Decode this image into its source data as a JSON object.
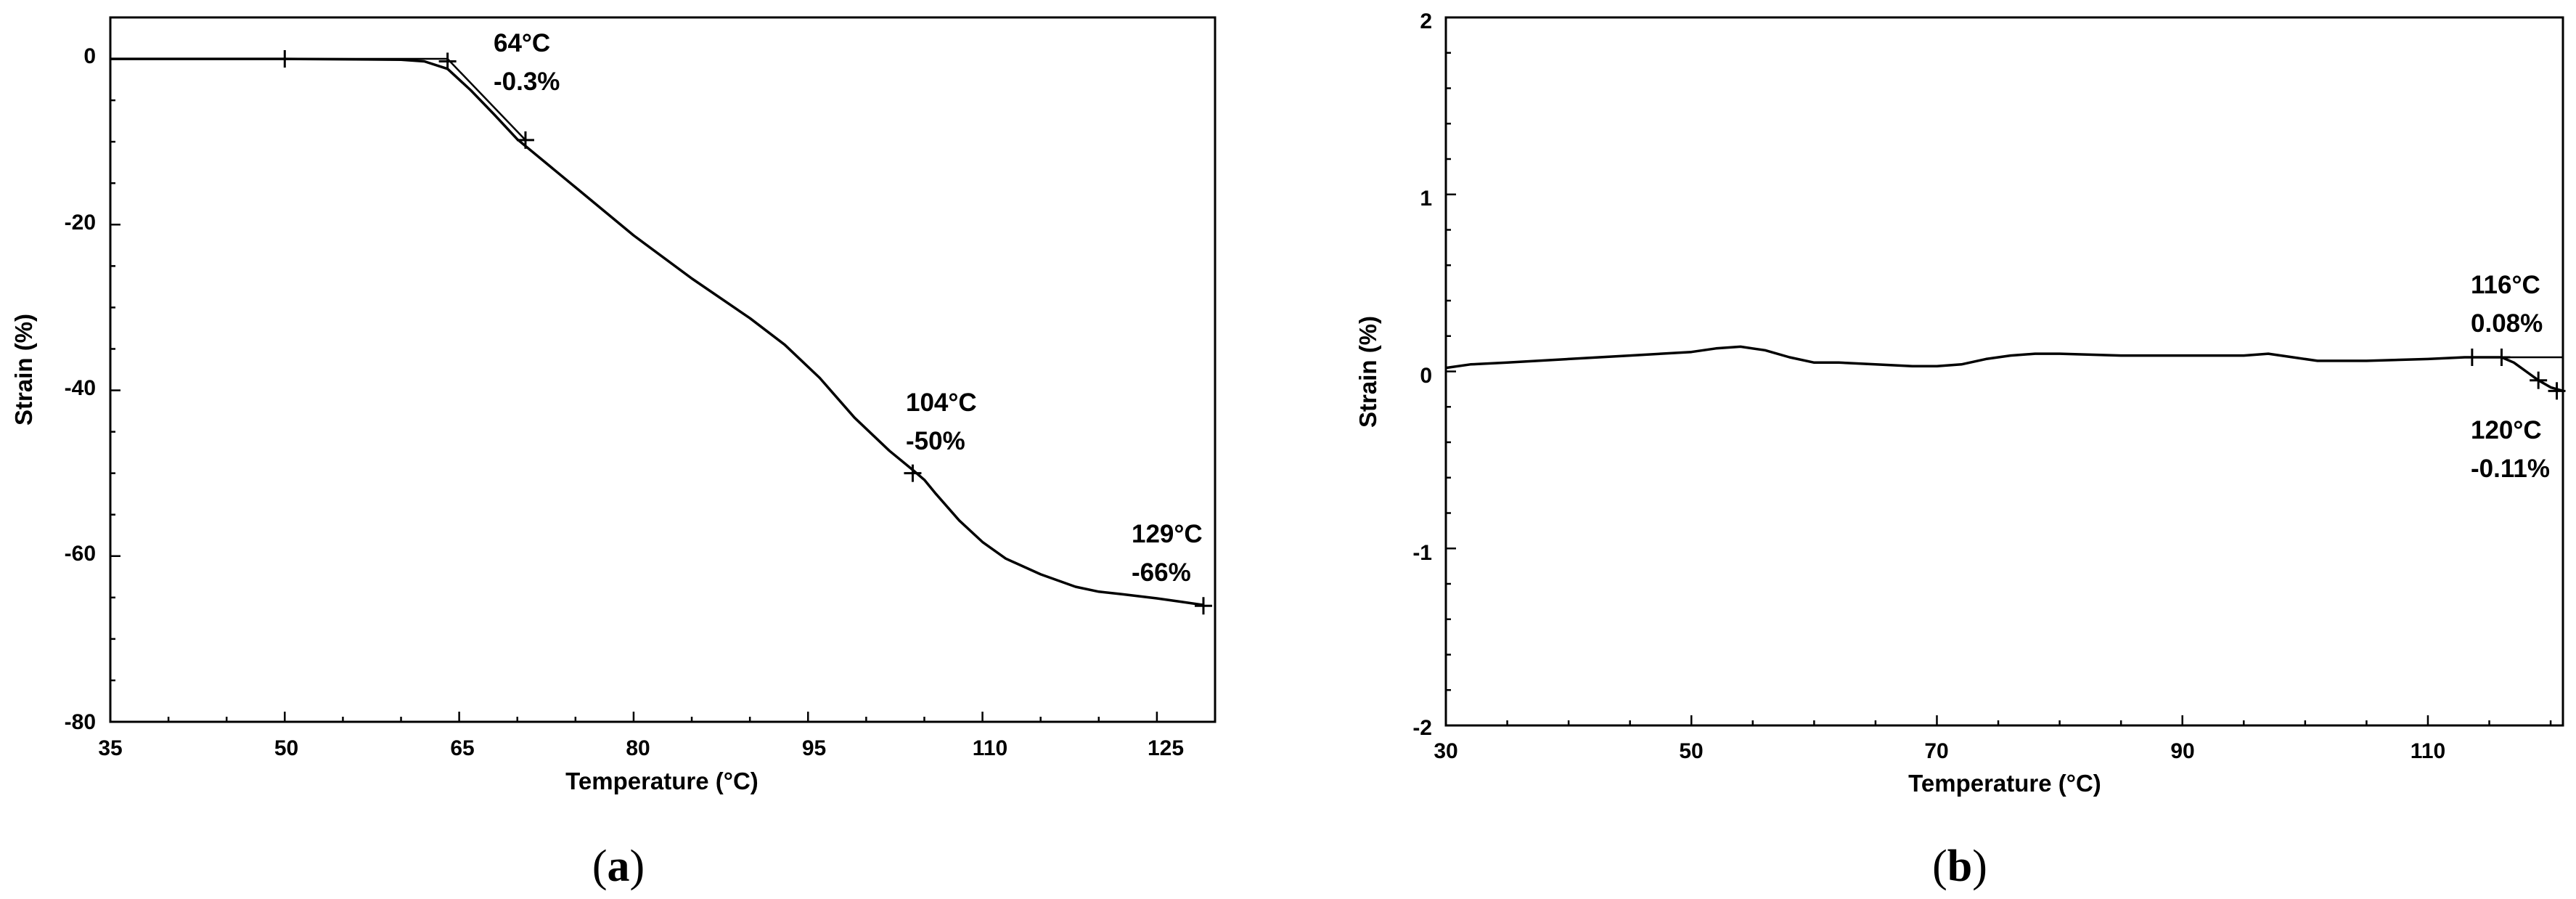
{
  "chart_data": [
    {
      "type": "line",
      "panel_label": "a",
      "xlabel": "Temperature (°C)",
      "ylabel": "Strain (%)",
      "xlim": [
        35,
        130
      ],
      "ylim": [
        -80,
        5
      ],
      "x_ticks": [
        "35",
        "50",
        "65",
        "80",
        "95",
        "110",
        "125"
      ],
      "y_ticks": [
        "0",
        "-20",
        "-40",
        "-60",
        "-80"
      ],
      "grid": false,
      "series": [
        {
          "x": [
            35,
            50,
            60,
            62,
            64,
            66,
            68,
            70,
            75,
            80,
            85,
            90,
            93,
            96,
            99,
            102,
            104,
            105,
            106,
            108,
            110,
            112,
            115,
            118,
            120,
            122,
            125,
            127,
            129
          ],
          "y": [
            0,
            0,
            -0.1,
            -0.3,
            -1.2,
            -3.8,
            -6.7,
            -9.7,
            -15.5,
            -21.3,
            -26.5,
            -31.3,
            -34.5,
            -38.5,
            -43.3,
            -47.3,
            -49.6,
            -50.8,
            -52.5,
            -55.7,
            -58.3,
            -60.3,
            -62.2,
            -63.7,
            -64.3,
            -64.6,
            -65.1,
            -65.5,
            -65.9
          ]
        }
      ],
      "tangent_lines": [
        {
          "x": [
            50,
            64
          ],
          "y": [
            0,
            0
          ]
        },
        {
          "x": [
            64,
            70.7
          ],
          "y": [
            0,
            -9.8
          ]
        }
      ],
      "markers": [
        {
          "x": 50,
          "y": 0
        },
        {
          "x": 64,
          "y": -0.3
        },
        {
          "x": 70.7,
          "y": -9.8
        },
        {
          "x": 104,
          "y": -50
        },
        {
          "x": 129,
          "y": -66
        }
      ],
      "annotations": [
        {
          "line1": "64°C",
          "line2": "-0.3%"
        },
        {
          "line1": "104°C",
          "line2": "-50%"
        },
        {
          "line1": "129°C",
          "line2": "-66%"
        }
      ]
    },
    {
      "type": "line",
      "panel_label": "b",
      "xlabel": "Temperature (°C)",
      "ylabel": "Strain (%)",
      "xlim": [
        30,
        121
      ],
      "ylim": [
        -2,
        2
      ],
      "x_ticks": [
        "30",
        "50",
        "70",
        "90",
        "110"
      ],
      "y_ticks": [
        "2",
        "1",
        "0",
        "-1",
        "-2"
      ],
      "grid": false,
      "series": [
        {
          "x": [
            30,
            32,
            35,
            40,
            45,
            50,
            52,
            54,
            56,
            58,
            60,
            62,
            65,
            68,
            70,
            72,
            74,
            76,
            78,
            80,
            85,
            90,
            95,
            97,
            99,
            101,
            105,
            110,
            113,
            116,
            117,
            118,
            119,
            120,
            121
          ],
          "y": [
            0.02,
            0.04,
            0.05,
            0.07,
            0.09,
            0.11,
            0.13,
            0.14,
            0.12,
            0.08,
            0.05,
            0.05,
            0.04,
            0.03,
            0.03,
            0.04,
            0.07,
            0.09,
            0.1,
            0.1,
            0.09,
            0.09,
            0.09,
            0.1,
            0.08,
            0.06,
            0.06,
            0.07,
            0.08,
            0.08,
            0.05,
            0.0,
            -0.05,
            -0.09,
            -0.11
          ]
        }
      ],
      "tangent_lines": [
        {
          "x": [
            113.6,
            121
          ],
          "y": [
            0.08,
            0.08
          ]
        }
      ],
      "markers": [
        {
          "x": 113.6,
          "y": 0.08
        },
        {
          "x": 116,
          "y": 0.08
        },
        {
          "x": 119,
          "y": -0.05
        },
        {
          "x": 120.5,
          "y": -0.11
        }
      ],
      "annotations": [
        {
          "line1": "116°C",
          "line2": "0.08%"
        },
        {
          "line1": "120°C",
          "line2": "-0.11%"
        }
      ]
    }
  ]
}
